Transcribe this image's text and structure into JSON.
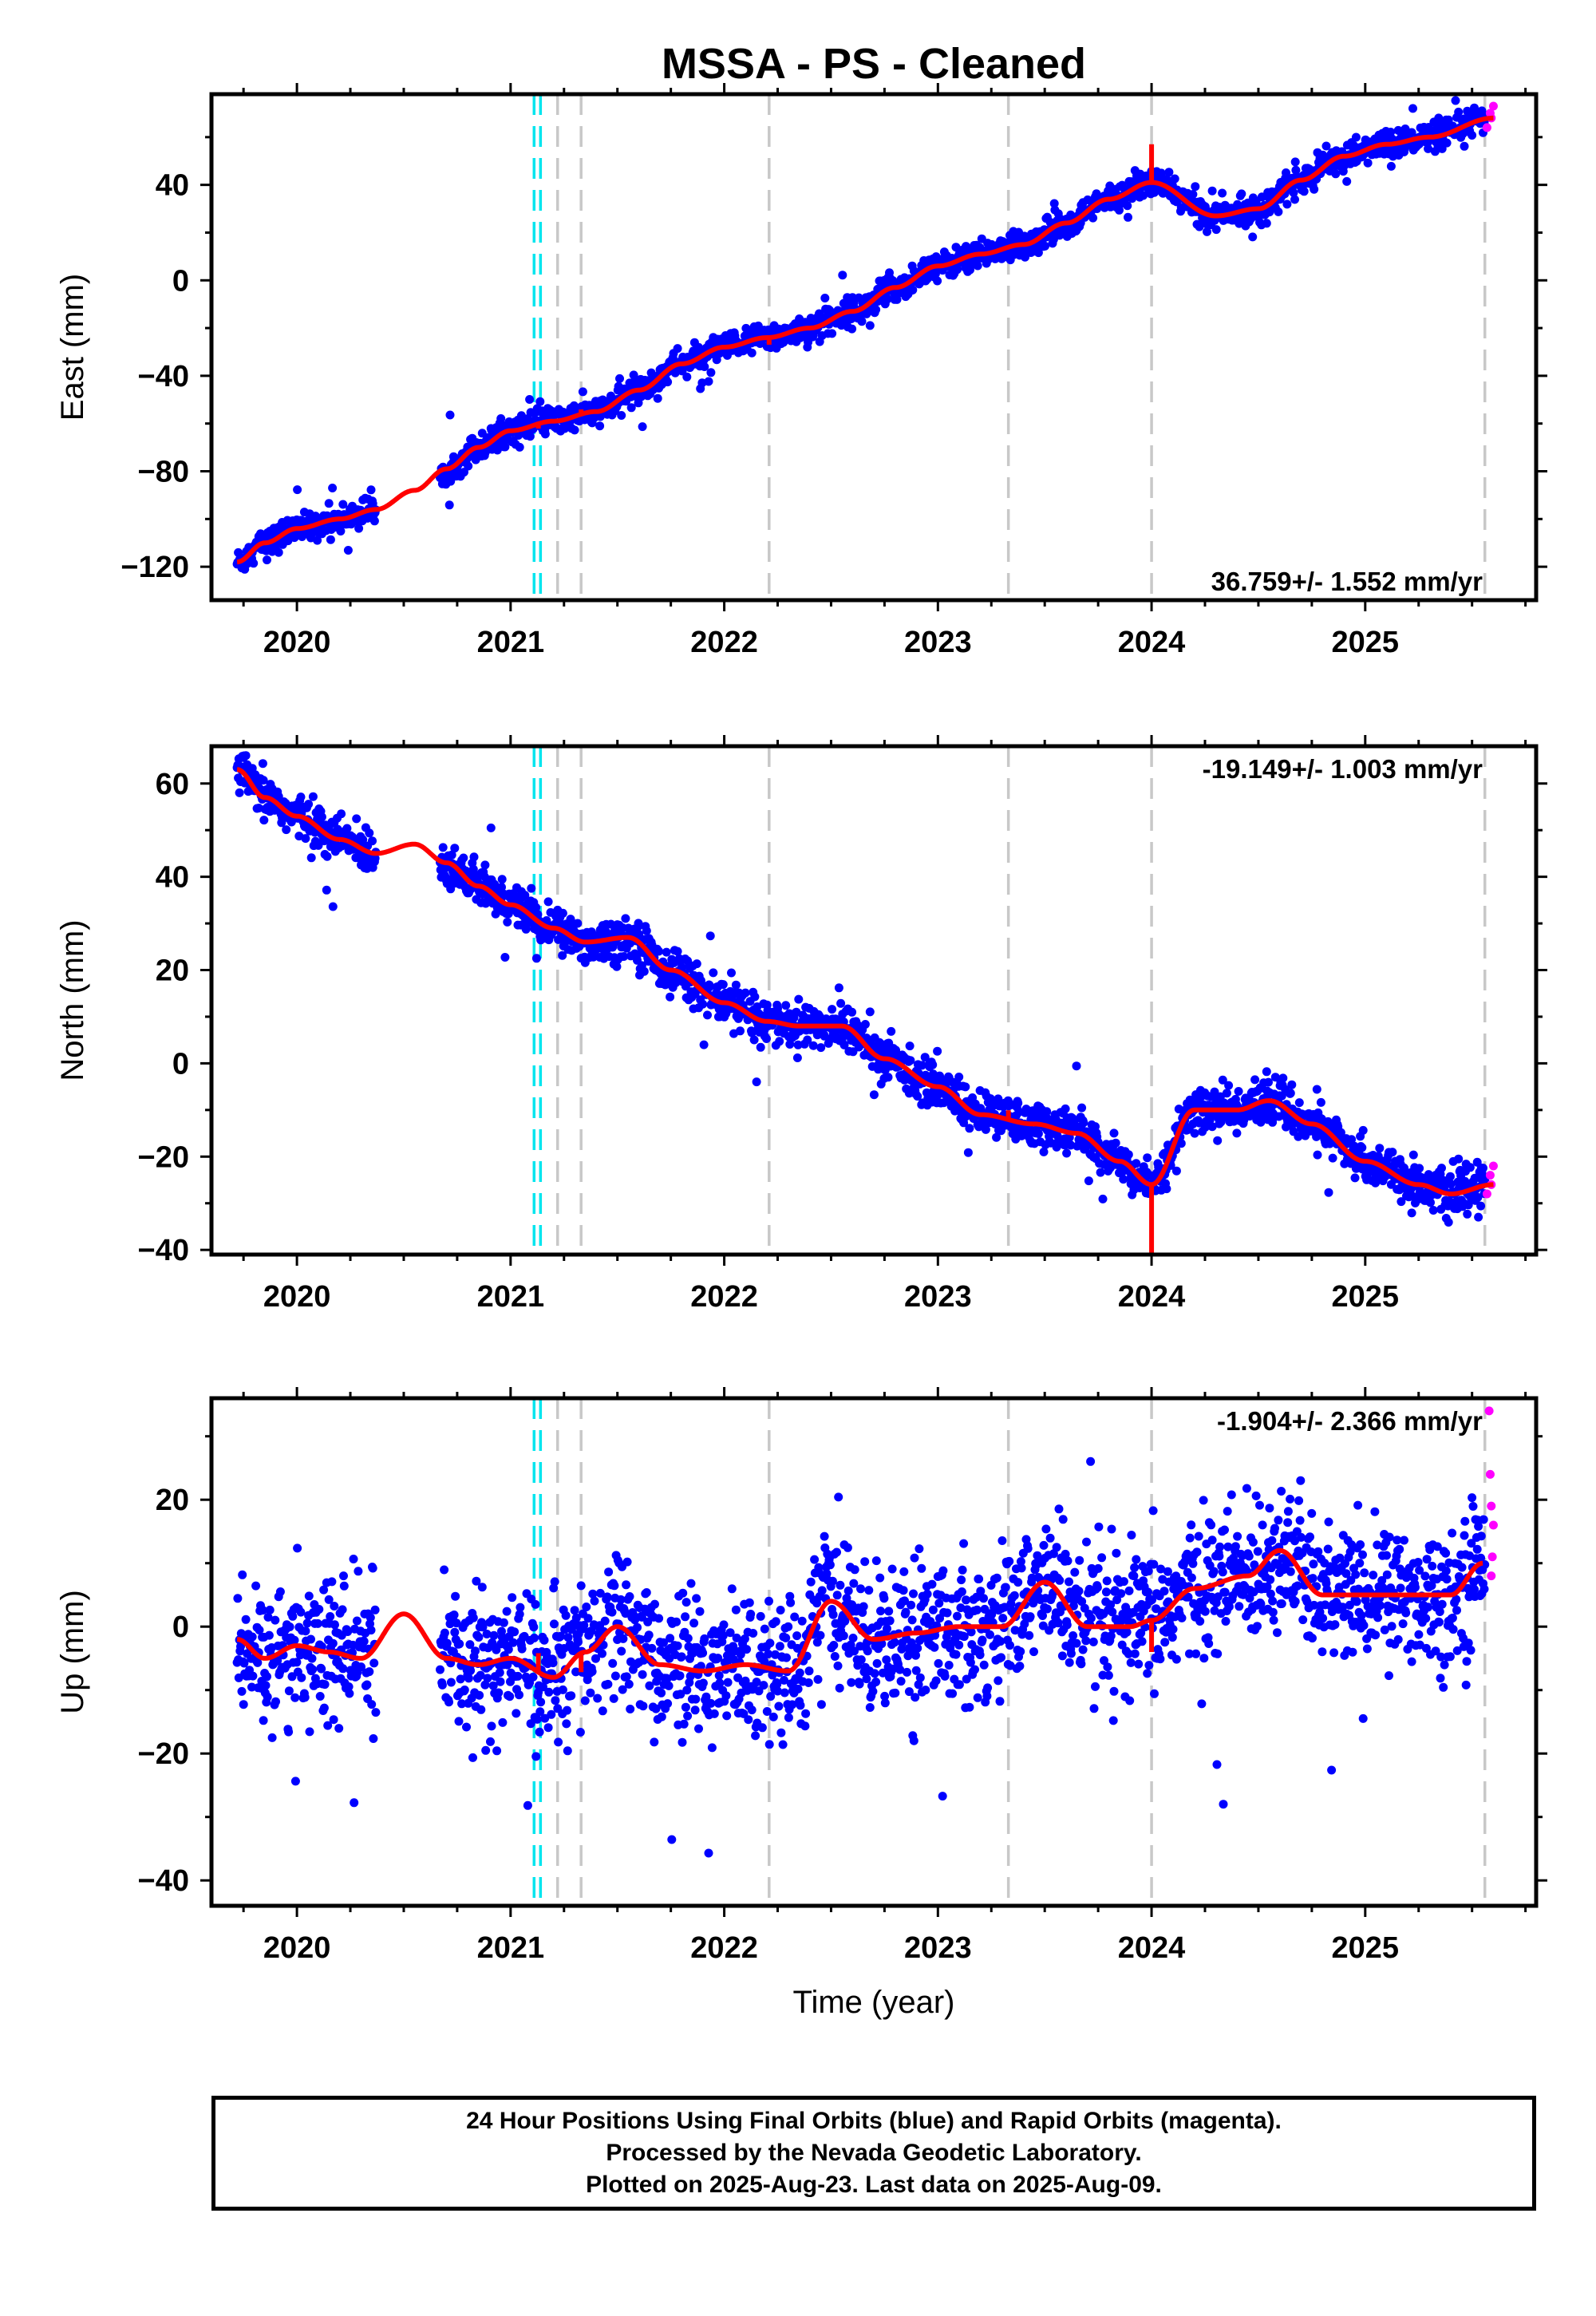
{
  "page": {
    "title": "MSSA  - PS - Cleaned",
    "xlabel": "Time (year)"
  },
  "footer": {
    "line1": "24 Hour Positions Using Final Orbits (blue) and Rapid Orbits (magenta).",
    "line2": "Processed by the Nevada Geodetic Laboratory.",
    "line3": "Plotted on 2025-Aug-23. Last data on 2025-Aug-09."
  },
  "colors": {
    "final_points": "#0000ff",
    "rapid_points": "#ff00ff",
    "fit": "#ff0000",
    "equipment_change": "#c8c8c8",
    "earthquake": "#00e5ee"
  },
  "chart_data": [
    {
      "type": "scatter",
      "component": "east",
      "ylabel": "East (mm)",
      "rate_text": "36.759+/- 1.552 mm/yr",
      "xlim": [
        2019.6,
        2025.8
      ],
      "ylim": [
        -134,
        78
      ],
      "xticks": [
        2020,
        2021,
        2022,
        2023,
        2024,
        2025
      ],
      "xtick_labels": [
        "2020",
        "2021",
        "2022",
        "2023",
        "2024",
        "2025"
      ],
      "yticks": [
        -120,
        -80,
        -40,
        0,
        40
      ],
      "ytick_labels": [
        "−120",
        "−80",
        "−40",
        "0",
        "40"
      ],
      "gap": [
        2020.37,
        2020.67
      ],
      "steps": [
        {
          "t": 2021.13,
          "dy": 2
        },
        {
          "t": 2021.33,
          "dy": -2
        },
        {
          "t": 2022.21,
          "dy": 3
        },
        {
          "t": 2024.0,
          "dy": -16
        }
      ],
      "fit_knots": {
        "x": [
          2019.72,
          2019.85,
          2020.0,
          2020.2,
          2020.37,
          2020.55,
          2020.7,
          2020.85,
          2021.0,
          2021.2,
          2021.4,
          2021.6,
          2021.8,
          2022.0,
          2022.2,
          2022.4,
          2022.6,
          2022.8,
          2023.0,
          2023.2,
          2023.4,
          2023.6,
          2023.8,
          2024.0,
          2024.3,
          2024.5,
          2024.7,
          2024.9,
          2025.1,
          2025.3,
          2025.6
        ],
        "y": [
          -118,
          -110,
          -104,
          -100,
          -96,
          -88,
          -79,
          -70,
          -63,
          -59,
          -55,
          -46,
          -35,
          -28,
          -24,
          -20,
          -13,
          -3,
          6,
          11,
          15,
          24,
          34,
          41,
          27,
          30,
          42,
          52,
          57,
          60,
          68
        ]
      },
      "scatter_sigma": 2.8,
      "rapid_points": {
        "x": [
          2025.57,
          2025.585,
          2025.6,
          2025.59
        ],
        "y": [
          64,
          70,
          73,
          68
        ]
      },
      "equipment_change_lines": [
        2021.22,
        2021.33,
        2022.21,
        2023.33,
        2024.0,
        2025.56
      ],
      "earthquake_lines": [
        2021.11,
        2021.14
      ]
    },
    {
      "type": "scatter",
      "component": "north",
      "ylabel": "North (mm)",
      "rate_text": "-19.149+/- 1.003 mm/yr",
      "xlim": [
        2019.6,
        2025.8
      ],
      "ylim": [
        -41,
        68
      ],
      "xticks": [
        2020,
        2021,
        2022,
        2023,
        2024,
        2025
      ],
      "xtick_labels": [
        "2020",
        "2021",
        "2022",
        "2023",
        "2024",
        "2025"
      ],
      "yticks": [
        -40,
        -20,
        0,
        20,
        40,
        60
      ],
      "ytick_labels": [
        "−40",
        "−20",
        "0",
        "20",
        "40",
        "60"
      ],
      "gap": [
        2020.37,
        2020.67
      ],
      "steps": [
        {
          "t": 2023.33,
          "dy": -2
        },
        {
          "t": 2024.0,
          "dy": 16
        }
      ],
      "fit_knots": {
        "x": [
          2019.72,
          2019.85,
          2020.0,
          2020.2,
          2020.37,
          2020.55,
          2020.7,
          2020.85,
          2021.0,
          2021.2,
          2021.35,
          2021.55,
          2021.75,
          2022.0,
          2022.2,
          2022.35,
          2022.55,
          2022.75,
          2023.0,
          2023.2,
          2023.45,
          2023.65,
          2023.85,
          2024.0,
          2024.2,
          2024.4,
          2024.55,
          2024.75,
          2025.0,
          2025.25,
          2025.4,
          2025.6
        ],
        "y": [
          63,
          57,
          53,
          48,
          45,
          47,
          43,
          38,
          34,
          29,
          26,
          27,
          20,
          13,
          9,
          8,
          8,
          1,
          -5,
          -11,
          -13,
          -15,
          -21,
          -26,
          -10,
          -10,
          -8,
          -13,
          -21,
          -26,
          -28,
          -26
        ]
      },
      "scatter_sigma": 2.3,
      "rapid_points": {
        "x": [
          2025.57,
          2025.585,
          2025.6,
          2025.59
        ],
        "y": [
          -28,
          -24,
          -22,
          -26
        ]
      },
      "equipment_change_lines": [
        2021.22,
        2021.33,
        2022.21,
        2023.33,
        2024.0,
        2025.56
      ],
      "earthquake_lines": [
        2021.11,
        2021.14
      ]
    },
    {
      "type": "scatter",
      "component": "up",
      "ylabel": "Up (mm)",
      "rate_text": "-1.904+/- 2.366 mm/yr",
      "xlim": [
        2019.6,
        2025.8
      ],
      "ylim": [
        -44,
        36
      ],
      "xticks": [
        2020,
        2021,
        2022,
        2023,
        2024,
        2025
      ],
      "xtick_labels": [
        "2020",
        "2021",
        "2022",
        "2023",
        "2024",
        "2025"
      ],
      "yticks": [
        -40,
        -20,
        0,
        20
      ],
      "ytick_labels": [
        "−40",
        "−20",
        "0",
        "20"
      ],
      "gap": [
        2020.37,
        2020.67
      ],
      "steps": [
        {
          "t": 2021.13,
          "dy": -3
        },
        {
          "t": 2021.33,
          "dy": 3
        },
        {
          "t": 2024.0,
          "dy": 5
        }
      ],
      "fit_knots": {
        "x": [
          2019.72,
          2019.85,
          2020.0,
          2020.15,
          2020.3,
          2020.5,
          2020.7,
          2020.85,
          2021.0,
          2021.2,
          2021.35,
          2021.5,
          2021.7,
          2021.9,
          2022.1,
          2022.3,
          2022.5,
          2022.7,
          2022.9,
          2023.1,
          2023.3,
          2023.5,
          2023.7,
          2023.9,
          2024.0,
          2024.2,
          2024.45,
          2024.6,
          2024.8,
          2025.0,
          2025.2,
          2025.4,
          2025.55
        ],
        "y": [
          -2,
          -5,
          -3,
          -4,
          -5,
          2,
          -5,
          -6,
          -5,
          -8,
          -4,
          0,
          -6,
          -7,
          -6,
          -7,
          4,
          -2,
          -1,
          0,
          0,
          7,
          0,
          0,
          1,
          6,
          8,
          12,
          5,
          5,
          5,
          5,
          10
        ]
      },
      "scatter_sigma": 5.5,
      "rapid_points": {
        "x": [
          2025.58,
          2025.585,
          2025.59,
          2025.6,
          2025.595,
          2025.59
        ],
        "y": [
          34,
          24,
          19,
          16,
          11,
          8
        ]
      },
      "equipment_change_lines": [
        2021.22,
        2021.33,
        2022.21,
        2023.33,
        2024.0,
        2025.56
      ],
      "earthquake_lines": [
        2021.11,
        2021.14
      ]
    }
  ]
}
